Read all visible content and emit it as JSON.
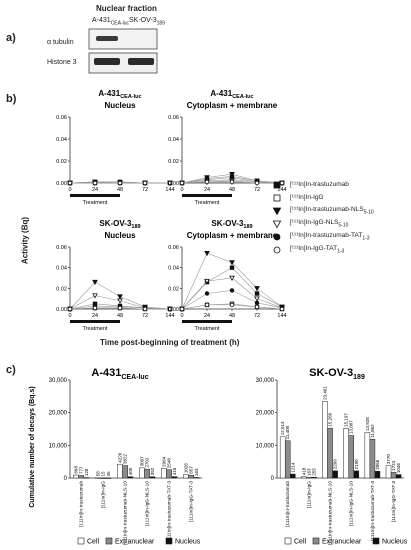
{
  "panels": {
    "a": "a)",
    "b": "b)",
    "c": "c)"
  },
  "western": {
    "title": "Nuclear fraction",
    "cell1_base": "A-431",
    "cell1_sub": "CEA-luc",
    "cell2_base": "SK-OV-3",
    "cell2_sub": "189",
    "row1": "α tubulin",
    "row2": "Histone 3"
  },
  "time_plots": {
    "ylabel": "Activity (Bq)",
    "xlabel": "Time post-beginning of treatment (h)",
    "treatment_label": "Treatment",
    "legend": [
      {
        "text": "[¹¹¹In]In-trastuzumab",
        "marker": "square-filled"
      },
      {
        "text": "[¹¹¹In]In-IgG",
        "marker": "square-open"
      },
      {
        "text": "[¹¹¹In]In-trastuzumab-NLS",
        "sub": "5-10",
        "marker": "tri-down-filled"
      },
      {
        "text": "[¹¹¹In]In-IgG-NLS",
        "sub": "5-10",
        "marker": "tri-down-open"
      },
      {
        "text": "[¹¹¹In]In-trastuzumab-TAT",
        "sub": "1-3",
        "marker": "circle-filled"
      },
      {
        "text": "[¹¹¹In]In-IgG-TAT",
        "sub": "1-3",
        "marker": "circle-open"
      }
    ]
  },
  "chart_data": [
    {
      "type": "line",
      "id": "A431-nucleus",
      "title_base": "A-431",
      "title_sub": "CEA-luc",
      "title_line2": "Nucleus",
      "x": [
        0,
        24,
        48,
        72,
        144
      ],
      "x_ticks": [
        "0",
        "24",
        "48",
        "72",
        "144"
      ],
      "ylim": [
        0,
        0.06
      ],
      "y_ticks": [
        "0.00",
        "0.02",
        "0.04",
        "0.06"
      ],
      "series": [
        {
          "marker": "square-filled",
          "values": [
            0,
            0.001,
            0.001,
            0,
            0
          ]
        },
        {
          "marker": "square-open",
          "values": [
            0,
            0,
            0,
            0,
            0
          ]
        },
        {
          "marker": "tri-down-filled",
          "values": [
            0,
            0.001,
            0,
            0,
            0
          ]
        },
        {
          "marker": "tri-down-open",
          "values": [
            0,
            0,
            0,
            0,
            0
          ]
        },
        {
          "marker": "circle-filled",
          "values": [
            0,
            0.001,
            0.001,
            0,
            0
          ]
        },
        {
          "marker": "circle-open",
          "values": [
            0,
            0,
            0,
            0,
            0
          ]
        }
      ]
    },
    {
      "type": "line",
      "id": "A431-cytoplasm",
      "title_base": "A-431",
      "title_sub": "CEA-luc",
      "title_line2": "Cytoplasm + membrane",
      "x": [
        0,
        24,
        48,
        72,
        144
      ],
      "x_ticks": [
        "0",
        "24",
        "48",
        "72",
        "144"
      ],
      "ylim": [
        0,
        0.06
      ],
      "y_ticks": [
        "0.00",
        "0.02",
        "0.04",
        "0.06"
      ],
      "series": [
        {
          "marker": "square-filled",
          "values": [
            0,
            0.004,
            0.006,
            0.002,
            0
          ]
        },
        {
          "marker": "square-open",
          "values": [
            0,
            0.002,
            0.003,
            0.001,
            0
          ]
        },
        {
          "marker": "tri-down-filled",
          "values": [
            0,
            0.005,
            0.008,
            0.002,
            0
          ]
        },
        {
          "marker": "tri-down-open",
          "values": [
            0,
            0.001,
            0.002,
            0,
            0
          ]
        },
        {
          "marker": "circle-filled",
          "values": [
            0,
            0.003,
            0.005,
            0.001,
            0
          ]
        },
        {
          "marker": "circle-open",
          "values": [
            0,
            0.001,
            0.001,
            0,
            0
          ]
        }
      ]
    },
    {
      "type": "line",
      "id": "SKOV3-nucleus",
      "title_base": "SK-OV-3",
      "title_sub": "189",
      "title_line2": "Nucleus",
      "x": [
        0,
        24,
        48,
        72,
        144
      ],
      "x_ticks": [
        "0",
        "24",
        "48",
        "72",
        "144"
      ],
      "ylim": [
        0,
        0.06
      ],
      "y_ticks": [
        "0.00",
        "0.02",
        "0.04",
        "0.06"
      ],
      "series": [
        {
          "marker": "square-filled",
          "values": [
            0,
            0.005,
            0.003,
            0.001,
            0
          ]
        },
        {
          "marker": "square-open",
          "values": [
            0,
            0.001,
            0.001,
            0,
            0
          ]
        },
        {
          "marker": "tri-down-filled",
          "values": [
            0,
            0.026,
            0.012,
            0.002,
            0
          ]
        },
        {
          "marker": "tri-down-open",
          "values": [
            0,
            0.013,
            0.008,
            0.001,
            0
          ]
        },
        {
          "marker": "circle-filled",
          "values": [
            0,
            0.003,
            0.002,
            0.001,
            0
          ]
        },
        {
          "marker": "circle-open",
          "values": [
            0,
            0.001,
            0.001,
            0,
            0
          ]
        }
      ]
    },
    {
      "type": "line",
      "id": "SKOV3-cytoplasm",
      "title_base": "SK-OV-3",
      "title_sub": "189",
      "title_line2": "Cytoplasm + membrane",
      "x": [
        0,
        24,
        48,
        72,
        144
      ],
      "x_ticks": [
        "0",
        "24",
        "48",
        "72",
        "144"
      ],
      "ylim": [
        0,
        0.06
      ],
      "y_ticks": [
        "0.00",
        "0.02",
        "0.04",
        "0.06"
      ],
      "series": [
        {
          "marker": "square-filled",
          "values": [
            0,
            0.026,
            0.04,
            0.015,
            0.002
          ]
        },
        {
          "marker": "square-open",
          "values": [
            0,
            0.004,
            0.005,
            0.002,
            0
          ]
        },
        {
          "marker": "tri-down-filled",
          "values": [
            0,
            0.054,
            0.045,
            0.02,
            0.002
          ]
        },
        {
          "marker": "tri-down-open",
          "values": [
            0,
            0.027,
            0.03,
            0.01,
            0.001
          ]
        },
        {
          "marker": "circle-filled",
          "values": [
            0,
            0.015,
            0.018,
            0.006,
            0.001
          ]
        },
        {
          "marker": "circle-open",
          "values": [
            0,
            0.004,
            0.004,
            0.002,
            0
          ]
        }
      ]
    },
    {
      "type": "bar",
      "id": "A431-cumulative",
      "title_base": "A-431",
      "title_sub": "CEA-luc",
      "ylabel": "Cumulative number of decays (Bq.s)",
      "ylim": [
        0,
        30000
      ],
      "y_ticks": [
        "0",
        "10,000",
        "20,000",
        "30,000"
      ],
      "categories": [
        "[111In]In-trastuzumab",
        "[111In]In-IgG",
        "[111In]In-trastuzumab-NLS-10",
        "[111In]In-IgG-NLS-10",
        "[111In]In-trastuzumab-TAT-3",
        "[111In]In-IgG-TAT-3"
      ],
      "series": [
        {
          "name": "Cell",
          "values": [
            898,
            58,
            4226,
            3097,
            2964,
            1026
          ],
          "labels": [
            "898",
            "58",
            "4226",
            "3097",
            "2964",
            "1026"
          ]
        },
        {
          "name": "Extranuclear",
          "values": [
            777,
            15,
            3822,
            2702,
            2548,
            857
          ],
          "labels": [
            "777",
            "15",
            "3822",
            "2702",
            "2548",
            "857"
          ]
        },
        {
          "name": "Nucleus",
          "values": [
            128,
            35,
            405,
            392,
            416,
            163
          ],
          "labels": [
            "128",
            "35",
            "405",
            "392",
            "416",
            "163"
          ]
        }
      ]
    },
    {
      "type": "bar",
      "id": "SKOV3-cumulative",
      "title_base": "SK-OV-3",
      "title_sub": "189",
      "ylim": [
        0,
        30000
      ],
      "y_ticks": [
        "0",
        "10,000",
        "20,000",
        "30,000"
      ],
      "categories": [
        "[111In]In-trastuzumab",
        "[111In]In-IgG",
        "[111In]In-trastuzumab-NLS-10",
        "[111In]In-IgG-NLS-10",
        "[111In]In-trastuzumab-TAT-3",
        "[111In]In-IgG-TAT-3"
      ],
      "series": [
        {
          "name": "Cell",
          "values": [
            12614,
            418,
            23461,
            15197,
            13928,
            3770
          ],
          "labels": [
            "12,614",
            "418",
            "23,461",
            "15,197",
            "13,928",
            "3770"
          ]
        },
        {
          "name": "Extranuclear",
          "values": [
            11400,
            163,
            15260,
            13007,
            11862,
            1724
          ],
          "labels": [
            "11,400",
            "163",
            "15,260",
            "13,007",
            "11,862",
            "1724"
          ]
        },
        {
          "name": "Nucleus",
          "values": [
            1214,
            255,
            2209,
            2190,
            2066,
            1046
          ],
          "labels": [
            "1214",
            "255",
            "2209",
            "2190",
            "2066",
            "1046"
          ]
        }
      ]
    }
  ],
  "bar_legend": [
    {
      "name": "Cell",
      "color": "#ffffff"
    },
    {
      "name": "Extranuclear",
      "color": "#8c8c8c"
    },
    {
      "name": "Nucleus",
      "color": "#111111"
    }
  ]
}
